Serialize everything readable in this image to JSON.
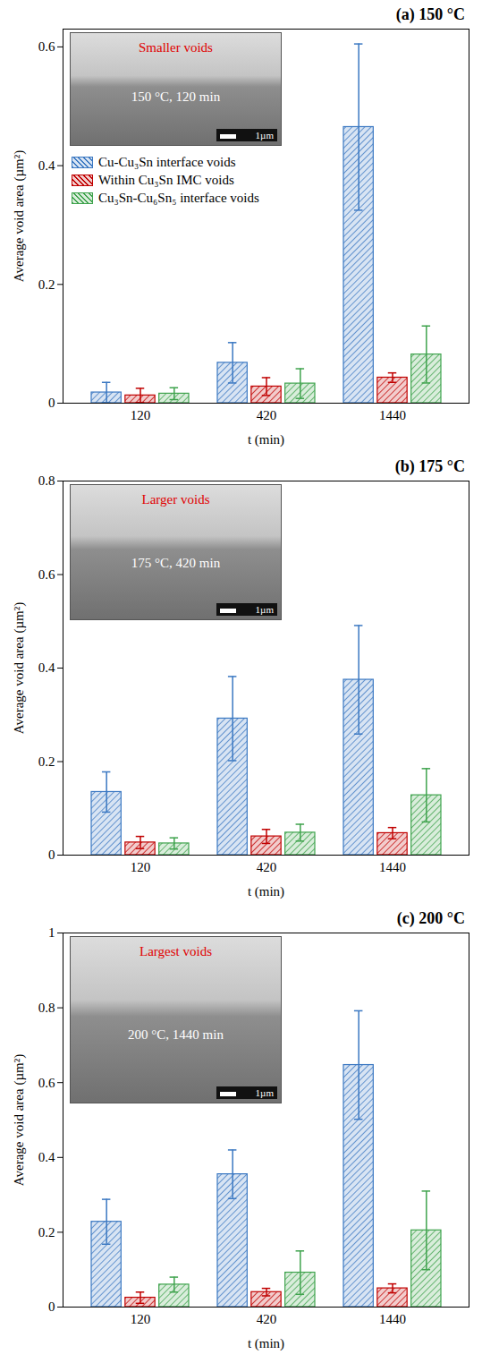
{
  "chart_data": [
    {
      "type": "bar",
      "title": "(a) 150 °C",
      "x_label": "t (min)",
      "y_label": "Average void area (µm²)",
      "categories": [
        "120",
        "420",
        "1440"
      ],
      "series": [
        {
          "name": "Cu-Cu₃Sn interface voids",
          "color": "#3b78c2",
          "values": [
            0.018,
            0.068,
            0.465
          ],
          "errors": [
            0.017,
            0.034,
            0.14
          ]
        },
        {
          "name": "Within Cu₃Sn IMC voids",
          "color": "#c00000",
          "values": [
            0.013,
            0.028,
            0.043
          ],
          "errors": [
            0.012,
            0.015,
            0.008
          ]
        },
        {
          "name": "Cu₃Sn-Cu₆Sn₅ interface voids",
          "color": "#3fa34d",
          "values": [
            0.016,
            0.033,
            0.082
          ],
          "errors": [
            0.01,
            0.025,
            0.048
          ]
        }
      ],
      "ylim": [
        0,
        0.63
      ],
      "yticks": [
        0,
        0.2,
        0.4,
        0.6
      ],
      "legend": "upper left",
      "inset": {
        "annotation": "Smaller voids",
        "label": "150 °C, 120 min",
        "scale_bar": "1µm"
      }
    },
    {
      "type": "bar",
      "title": "(b) 175 °C",
      "x_label": "t (min)",
      "y_label": "Average void area (µm²)",
      "categories": [
        "120",
        "420",
        "1440"
      ],
      "series": [
        {
          "name": "Cu-Cu₃Sn interface voids",
          "color": "#3b78c2",
          "values": [
            0.135,
            0.292,
            0.375
          ],
          "errors": [
            0.043,
            0.09,
            0.116
          ]
        },
        {
          "name": "Within Cu₃Sn IMC voids",
          "color": "#c00000",
          "values": [
            0.027,
            0.04,
            0.047
          ],
          "errors": [
            0.013,
            0.015,
            0.012
          ]
        },
        {
          "name": "Cu₃Sn-Cu₆Sn₅ interface voids",
          "color": "#3fa34d",
          "values": [
            0.025,
            0.048,
            0.128
          ],
          "errors": [
            0.012,
            0.018,
            0.057
          ]
        }
      ],
      "ylim": [
        0,
        0.8
      ],
      "yticks": [
        0,
        0.2,
        0.4,
        0.6,
        0.8
      ],
      "inset": {
        "annotation": "Larger voids",
        "label": "175 °C, 420 min",
        "scale_bar": "1µm"
      }
    },
    {
      "type": "bar",
      "title": "(c) 200 °C",
      "x_label": "t (min)",
      "y_label": "Average void area (µm²)",
      "categories": [
        "120",
        "420",
        "1440"
      ],
      "series": [
        {
          "name": "Cu-Cu₃Sn interface voids",
          "color": "#3b78c2",
          "values": [
            0.228,
            0.355,
            0.647
          ],
          "errors": [
            0.06,
            0.065,
            0.145
          ]
        },
        {
          "name": "Within Cu₃Sn IMC voids",
          "color": "#c00000",
          "values": [
            0.025,
            0.04,
            0.05
          ],
          "errors": [
            0.015,
            0.01,
            0.012
          ]
        },
        {
          "name": "Cu₃Sn-Cu₆Sn₅ interface voids",
          "color": "#3fa34d",
          "values": [
            0.06,
            0.092,
            0.205
          ],
          "errors": [
            0.02,
            0.058,
            0.105
          ]
        }
      ],
      "ylim": [
        0,
        1
      ],
      "yticks": [
        0,
        0.2,
        0.4,
        0.6,
        0.8,
        1
      ],
      "inset": {
        "annotation": "Largest voids",
        "label": "200 °C, 1440 min",
        "scale_bar": "1µm"
      }
    }
  ]
}
